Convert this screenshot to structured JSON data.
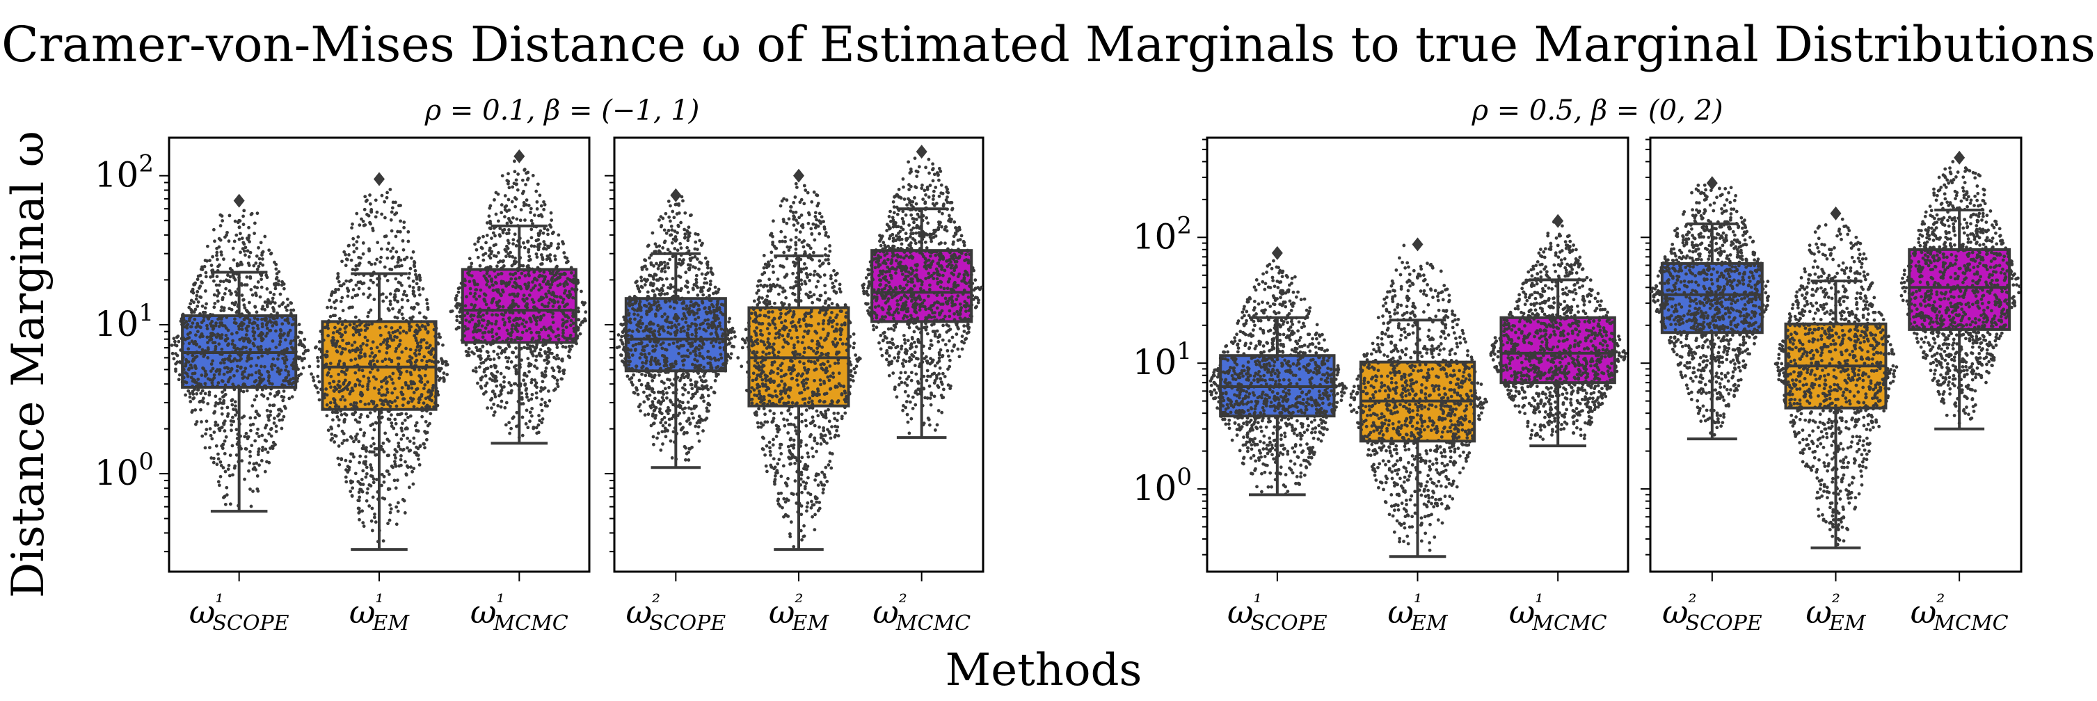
{
  "figure": {
    "title": "Cramer-von-Mises Distance ω of Estimated Marginals to true Marginal Distributions",
    "ylabel": "Distance Marginal ω",
    "xlabel": "Methods"
  },
  "groups": [
    {
      "title": "ρ = 0.1, β = (−1, 1)"
    },
    {
      "title": "ρ = 0.5, β = (0, 2)"
    }
  ],
  "ytick_labels": {
    "group1": [
      "10^0",
      "10^1",
      "10^2"
    ],
    "group2": [
      "10^0",
      "10^1",
      "10^2"
    ]
  },
  "colors": {
    "scope": "#4a6fd6",
    "em": "#e59e1c",
    "mcmc": "#bd16bd",
    "dots": "#3a3a3a",
    "outline": "#3a3a3a"
  },
  "chart_data": [
    {
      "type": "box",
      "group": 0,
      "title": "ρ = 0.1, β = (−1, 1)",
      "yscale": "log",
      "ylim": [
        0.22,
        180
      ],
      "categories": [
        "ω¹_SCOPE",
        "ω¹_EM",
        "ω¹_MCMC"
      ],
      "boxes": [
        {
          "label": "ω¹_SCOPE",
          "whisker_low": 0.56,
          "q1": 3.8,
          "median": 6.5,
          "q3": 11.5,
          "whisker_high": 22.5,
          "max": 68,
          "color_key": "scope"
        },
        {
          "label": "ω¹_EM",
          "whisker_low": 0.31,
          "q1": 2.7,
          "median": 5.2,
          "q3": 10.5,
          "whisker_high": 22,
          "max": 95,
          "color_key": "em"
        },
        {
          "label": "ω¹_MCMC",
          "whisker_low": 1.6,
          "q1": 7.6,
          "median": 12.5,
          "q3": 23.5,
          "whisker_high": 46,
          "max": 135,
          "color_key": "mcmc"
        }
      ]
    },
    {
      "type": "box",
      "group": 0,
      "title": "",
      "yscale": "log",
      "ylim": [
        0.22,
        180
      ],
      "categories": [
        "ω²_SCOPE",
        "ω²_EM",
        "ω²_MCMC"
      ],
      "boxes": [
        {
          "label": "ω²_SCOPE",
          "whisker_low": 1.1,
          "q1": 4.9,
          "median": 8.0,
          "q3": 15.0,
          "whisker_high": 30,
          "max": 74,
          "color_key": "scope"
        },
        {
          "label": "ω²_EM",
          "whisker_low": 0.31,
          "q1": 2.85,
          "median": 6.0,
          "q3": 13.0,
          "whisker_high": 29,
          "max": 100,
          "color_key": "em"
        },
        {
          "label": "ω²_MCMC",
          "whisker_low": 1.75,
          "q1": 10.5,
          "median": 16.5,
          "q3": 31.5,
          "whisker_high": 60,
          "max": 145,
          "color_key": "mcmc"
        }
      ]
    },
    {
      "type": "box",
      "group": 1,
      "title": "ρ = 0.5, β = (0, 2)",
      "yscale": "log",
      "ylim": [
        0.22,
        620
      ],
      "categories": [
        "ω¹_SCOPE",
        "ω¹_EM",
        "ω¹_MCMC"
      ],
      "boxes": [
        {
          "label": "ω¹_SCOPE",
          "whisker_low": 0.9,
          "q1": 3.8,
          "median": 6.5,
          "q3": 11.5,
          "whisker_high": 23,
          "max": 75,
          "color_key": "scope"
        },
        {
          "label": "ω¹_EM",
          "whisker_low": 0.29,
          "q1": 2.4,
          "median": 5.0,
          "q3": 10.2,
          "whisker_high": 22,
          "max": 88,
          "color_key": "em"
        },
        {
          "label": "ω¹_MCMC",
          "whisker_low": 2.2,
          "q1": 7.0,
          "median": 12.0,
          "q3": 23.0,
          "whisker_high": 46,
          "max": 135,
          "color_key": "mcmc"
        }
      ]
    },
    {
      "type": "box",
      "group": 1,
      "title": "",
      "yscale": "log",
      "ylim": [
        0.22,
        620
      ],
      "categories": [
        "ω²_SCOPE",
        "ω²_EM",
        "ω²_MCMC"
      ],
      "boxes": [
        {
          "label": "ω²_SCOPE",
          "whisker_low": 2.5,
          "q1": 17.5,
          "median": 35.0,
          "q3": 62.0,
          "whisker_high": 128,
          "max": 270,
          "color_key": "scope"
        },
        {
          "label": "ω²_EM",
          "whisker_low": 0.34,
          "q1": 4.4,
          "median": 9.5,
          "q3": 20.5,
          "whisker_high": 45,
          "max": 155,
          "color_key": "em"
        },
        {
          "label": "ω²_MCMC",
          "whisker_low": 3.0,
          "q1": 18.5,
          "median": 40.0,
          "q3": 80.0,
          "whisker_high": 165,
          "max": 430,
          "color_key": "mcmc"
        }
      ]
    }
  ]
}
